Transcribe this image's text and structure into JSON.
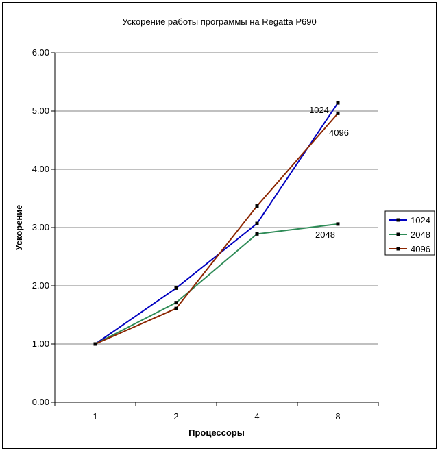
{
  "chart_data": {
    "type": "line",
    "title": "Ускорение работы программы на Regatta P690",
    "xlabel": "Процессоры",
    "ylabel": "Ускорение",
    "categories": [
      "1",
      "2",
      "4",
      "8"
    ],
    "ylim": [
      0,
      6
    ],
    "yticks": [
      "0.00",
      "1.00",
      "2.00",
      "3.00",
      "4.00",
      "5.00",
      "6.00"
    ],
    "grid": "horizontal",
    "legend_position": "right",
    "series": [
      {
        "name": "1024",
        "color": "#0000c0",
        "values": [
          1.0,
          1.96,
          3.07,
          5.14
        ]
      },
      {
        "name": "2048",
        "color": "#2e8b57",
        "values": [
          1.0,
          1.71,
          2.89,
          3.06
        ]
      },
      {
        "name": "4096",
        "color": "#8b2500",
        "values": [
          1.0,
          1.61,
          3.37,
          4.96
        ]
      }
    ],
    "annotations": [
      "1024",
      "4096",
      "2048"
    ]
  }
}
